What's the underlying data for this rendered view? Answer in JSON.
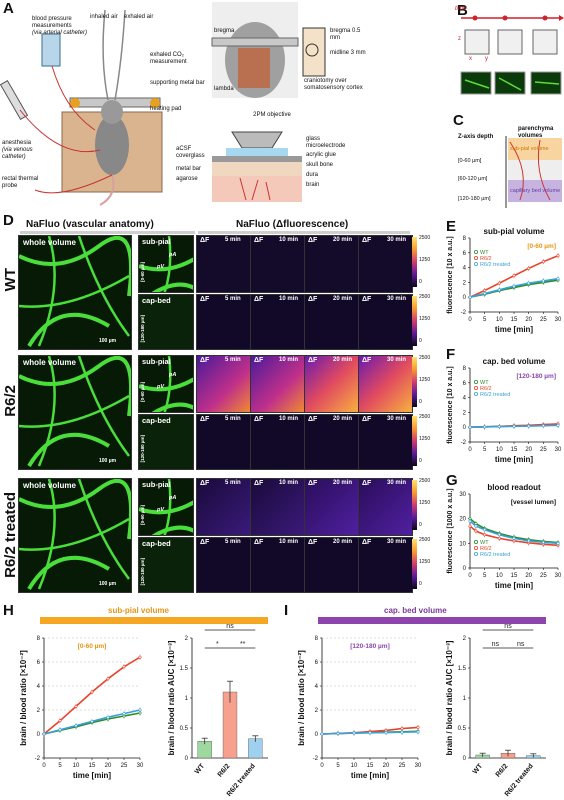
{
  "panels": {
    "A": "A",
    "B": "B",
    "C": "C",
    "D": "D",
    "E": "E",
    "F": "F",
    "G": "G",
    "H": "H",
    "I": "I"
  },
  "panelA": {
    "bp_label": "blood pressure measurements",
    "bp_sub": "(via arterial catheter)",
    "inhaled": "inhaled air",
    "exhaled": "exhaled air",
    "co2": "exhaled CO₂ measurement",
    "metal_bar": "supporting metal bar",
    "heating": "heating pad",
    "anesthesia": "anesthesia",
    "anesthesia_sub": "(via venous catheter)",
    "rectal": "rectal thermal probe",
    "bregma": "bregma",
    "lambda": "lambda",
    "bregma_dist": "bregma 0.5 mm",
    "midline": "midline 3 mm",
    "craniotomy": "craniotomy over somatosensory cortex",
    "objective": "2PM objective",
    "acsf": "aCSF coverglass",
    "metal": "metal bar",
    "agarose": "agarose",
    "glass": "glass microelectrode",
    "acrylic": "acrylic glue",
    "skull": "skull bone",
    "dura": "dura",
    "brain": "brain"
  },
  "panelB": {
    "time": "time",
    "z": "z",
    "x": "x",
    "y": "y"
  },
  "panelC": {
    "zaxis": "Z-axis depth",
    "parenchyma": "parenchyma volumes",
    "d1": "[0-60 µm]",
    "d2": "[60-120 µm]",
    "d3": "[120-180 µm]",
    "subpial": "sub-pial volume",
    "capbed": "capillary bed volume"
  },
  "panelD": {
    "left_title": "NaFluo (vascular anatomy)",
    "right_title": "NaFluo (Δfluorescence)",
    "rows": [
      {
        "label": "WT"
      },
      {
        "label": "R6/2"
      },
      {
        "label": "R6/2 treated"
      }
    ],
    "whole": "whole volume",
    "subpial": "sub-pial",
    "capbed": "cap-bed",
    "d_sub": "[0-60 µm]",
    "d_cap": "[120-180 µm]",
    "dF": "ΔF",
    "times": [
      "5 min",
      "10 min",
      "20 min",
      "30 min"
    ],
    "scale_100": "100 µm",
    "pA": "pA",
    "pV": "pV",
    "cbar": [
      "2500",
      "1250",
      "0"
    ]
  },
  "chart_data": [
    {
      "panel": "E",
      "type": "line",
      "title": "sub-pial volume",
      "annotation": "[0-60 µm]",
      "xlabel": "time [min]",
      "ylabel": "fluorescence [10 x a.u.]",
      "xlim": [
        0,
        30
      ],
      "ylim": [
        -2,
        8
      ],
      "xticks": [
        0,
        5,
        10,
        15,
        20,
        25,
        30
      ],
      "yticks": [
        -2,
        0,
        2,
        4,
        6,
        8
      ],
      "series": [
        {
          "name": "WT",
          "color": "#2e8b2e",
          "x": [
            0,
            5,
            10,
            15,
            20,
            25,
            30
          ],
          "y": [
            0,
            0.4,
            0.9,
            1.3,
            1.7,
            2.0,
            2.3
          ]
        },
        {
          "name": "R6/2",
          "color": "#e8432d",
          "x": [
            0,
            5,
            10,
            15,
            20,
            25,
            30
          ],
          "y": [
            0,
            0.9,
            1.9,
            2.9,
            3.9,
            4.8,
            5.6
          ]
        },
        {
          "name": "R6/2 treated",
          "color": "#3aa0d8",
          "x": [
            0,
            5,
            10,
            15,
            20,
            25,
            30
          ],
          "y": [
            0,
            0.5,
            1.0,
            1.5,
            1.9,
            2.2,
            2.5
          ]
        }
      ]
    },
    {
      "panel": "F",
      "type": "line",
      "title": "cap. bed volume",
      "annotation": "[120-180 µm]",
      "xlabel": "time [min]",
      "ylabel": "fluorescence [10 x a.u.]",
      "xlim": [
        0,
        30
      ],
      "ylim": [
        -2,
        8
      ],
      "xticks": [
        0,
        5,
        10,
        15,
        20,
        25,
        30
      ],
      "yticks": [
        -2,
        0,
        2,
        4,
        6,
        8
      ],
      "series": [
        {
          "name": "WT",
          "color": "#2e8b2e",
          "x": [
            0,
            5,
            10,
            15,
            20,
            25,
            30
          ],
          "y": [
            0,
            0.05,
            0.1,
            0.15,
            0.2,
            0.25,
            0.3
          ]
        },
        {
          "name": "R6/2",
          "color": "#e8432d",
          "x": [
            0,
            5,
            10,
            15,
            20,
            25,
            30
          ],
          "y": [
            0,
            0.05,
            0.1,
            0.2,
            0.25,
            0.35,
            0.45
          ]
        },
        {
          "name": "R6/2 treated",
          "color": "#3aa0d8",
          "x": [
            0,
            5,
            10,
            15,
            20,
            25,
            30
          ],
          "y": [
            0,
            0.04,
            0.08,
            0.12,
            0.15,
            0.2,
            0.25
          ]
        }
      ]
    },
    {
      "panel": "G",
      "type": "line",
      "title": "blood readout",
      "annotation": "[vessel lumen]",
      "xlabel": "time [min]",
      "ylabel": "fluorescence [1000 x a.u.]",
      "xlim": [
        0,
        30
      ],
      "ylim": [
        0,
        30
      ],
      "xticks": [
        0,
        5,
        10,
        15,
        20,
        25,
        30
      ],
      "yticks": [
        0,
        10,
        20,
        30
      ],
      "series": [
        {
          "name": "WT",
          "color": "#2e8b2e",
          "x": [
            0,
            2,
            5,
            10,
            15,
            20,
            25,
            30
          ],
          "y": [
            20,
            18,
            16,
            14,
            12.5,
            11.5,
            10.8,
            10.3
          ]
        },
        {
          "name": "R6/2",
          "color": "#e8432d",
          "x": [
            0,
            2,
            5,
            10,
            15,
            20,
            25,
            30
          ],
          "y": [
            17,
            15,
            13.5,
            12,
            11,
            10.2,
            9.6,
            9.2
          ]
        },
        {
          "name": "R6/2 treated",
          "color": "#3aa0d8",
          "x": [
            0,
            2,
            5,
            10,
            15,
            20,
            25,
            30
          ],
          "y": [
            19,
            17,
            15.5,
            13.5,
            12,
            11,
            10.4,
            10
          ]
        }
      ]
    },
    {
      "panel": "H-left",
      "type": "line",
      "annotation": "[0-60 µm]",
      "xlabel": "time [min]",
      "ylabel": "brain / blood ratio [×10⁻²]",
      "xlim": [
        0,
        30
      ],
      "ylim": [
        -2,
        8
      ],
      "xticks": [
        0,
        5,
        10,
        15,
        20,
        25,
        30
      ],
      "yticks": [
        -2,
        0,
        2,
        4,
        6,
        8
      ],
      "series": [
        {
          "name": "WT",
          "color": "#2e8b2e",
          "x": [
            0,
            5,
            10,
            15,
            20,
            25,
            30
          ],
          "y": [
            0,
            0.3,
            0.6,
            0.95,
            1.25,
            1.5,
            1.75
          ]
        },
        {
          "name": "R6/2",
          "color": "#e8432d",
          "x": [
            0,
            5,
            10,
            15,
            20,
            25,
            30
          ],
          "y": [
            0,
            1.1,
            2.3,
            3.5,
            4.6,
            5.6,
            6.4
          ]
        },
        {
          "name": "R6/2 treated",
          "color": "#3aa0d8",
          "x": [
            0,
            5,
            10,
            15,
            20,
            25,
            30
          ],
          "y": [
            0,
            0.35,
            0.7,
            1.05,
            1.4,
            1.7,
            2.0
          ]
        }
      ]
    },
    {
      "panel": "H-right",
      "type": "bar",
      "ylabel": "brain / blood ratio AUC [×10⁻³]",
      "categories": [
        "WT",
        "R6/2",
        "R6/2 treated"
      ],
      "values": [
        0.28,
        1.1,
        0.32
      ],
      "errors": [
        0.05,
        0.18,
        0.05
      ],
      "colors": [
        "#9fd89f",
        "#f7a08e",
        "#9fd1ef"
      ],
      "ylim": [
        0,
        2.0
      ],
      "yticks": [
        0,
        0.5,
        1.0,
        1.5,
        2.0
      ],
      "sig": [
        {
          "a": 0,
          "b": 2,
          "label": "ns"
        },
        {
          "a": 0,
          "b": 1,
          "label": "*"
        },
        {
          "a": 1,
          "b": 2,
          "label": "**"
        }
      ]
    },
    {
      "panel": "I-left",
      "type": "line",
      "annotation": "[120-180 µm]",
      "xlabel": "time [min]",
      "ylabel": "brain / blood ratio [×10⁻²]",
      "xlim": [
        0,
        30
      ],
      "ylim": [
        -2,
        8
      ],
      "xticks": [
        0,
        5,
        10,
        15,
        20,
        25,
        30
      ],
      "yticks": [
        -2,
        0,
        2,
        4,
        6,
        8
      ],
      "series": [
        {
          "name": "WT",
          "color": "#2e8b2e",
          "x": [
            0,
            5,
            10,
            15,
            20,
            25,
            30
          ],
          "y": [
            0,
            0.05,
            0.08,
            0.12,
            0.15,
            0.18,
            0.22
          ]
        },
        {
          "name": "R6/2",
          "color": "#e8432d",
          "x": [
            0,
            5,
            10,
            15,
            20,
            25,
            30
          ],
          "y": [
            0,
            0.05,
            0.1,
            0.2,
            0.3,
            0.45,
            0.55
          ]
        },
        {
          "name": "R6/2 treated",
          "color": "#3aa0d8",
          "x": [
            0,
            5,
            10,
            15,
            20,
            25,
            30
          ],
          "y": [
            0,
            0.04,
            0.08,
            0.1,
            0.12,
            0.15,
            0.18
          ]
        }
      ]
    },
    {
      "panel": "I-right",
      "type": "bar",
      "ylabel": "brain / blood ratio AUC [×10⁻³]",
      "categories": [
        "WT",
        "R6/2",
        "R6/2 treated"
      ],
      "values": [
        0.05,
        0.08,
        0.04
      ],
      "errors": [
        0.03,
        0.05,
        0.03
      ],
      "colors": [
        "#9fd89f",
        "#f7a08e",
        "#9fd1ef"
      ],
      "ylim": [
        0,
        2.0
      ],
      "yticks": [
        0,
        0.5,
        1.0,
        1.5,
        2.0
      ],
      "sig": [
        {
          "a": 0,
          "b": 2,
          "label": "ns"
        },
        {
          "a": 0,
          "b": 1,
          "label": "ns"
        },
        {
          "a": 1,
          "b": 2,
          "label": "ns"
        }
      ]
    }
  ],
  "panelH": {
    "header": "sub-pial volume",
    "header_color": "#f5a623"
  },
  "panelI": {
    "header": "cap. bed volume",
    "header_color": "#8e44ad"
  },
  "legend": [
    "WT",
    "R6/2",
    "R6/2 treated"
  ]
}
